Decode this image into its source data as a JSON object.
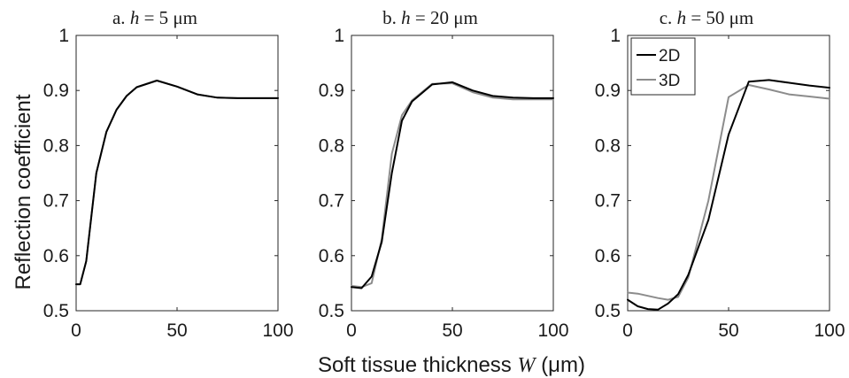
{
  "figure": {
    "ylabel": "Reflection coefficient",
    "xlabel_prefix": "Soft tissue thickness ",
    "xlabel_var": "W",
    "xlabel_unit": " (μm)"
  },
  "colors": {
    "2D": "#000000",
    "3D": "#8c8c8c"
  },
  "chart_data": [
    {
      "type": "line",
      "title": "a.  h = 5 μm",
      "title_parts": {
        "prefix": "a.  ",
        "var": "h",
        "rest": " = 5 μm"
      },
      "xlim": [
        0,
        100
      ],
      "ylim": [
        0.5,
        1
      ],
      "xticks": [
        0,
        50,
        100
      ],
      "yticks": [
        0.5,
        0.6,
        0.7,
        0.8,
        0.9,
        1
      ],
      "ytick_labels": [
        "0.5",
        "0.6",
        "0.7",
        "0.8",
        "0.9",
        "1"
      ],
      "legend": null,
      "series": [
        {
          "name": "2D",
          "x": [
            0,
            2,
            5,
            10,
            15,
            20,
            25,
            30,
            40,
            50,
            60,
            70,
            80,
            90,
            100
          ],
          "y": [
            0.548,
            0.548,
            0.59,
            0.75,
            0.825,
            0.865,
            0.89,
            0.906,
            0.918,
            0.907,
            0.893,
            0.887,
            0.886,
            0.886,
            0.886
          ]
        },
        {
          "name": "3D",
          "x": [
            0,
            2,
            5,
            10,
            15,
            20,
            25,
            30,
            40,
            50,
            60,
            70,
            80,
            90,
            100
          ],
          "y": [
            0.548,
            0.548,
            0.59,
            0.75,
            0.825,
            0.865,
            0.89,
            0.906,
            0.918,
            0.907,
            0.893,
            0.887,
            0.886,
            0.886,
            0.886
          ]
        }
      ]
    },
    {
      "type": "line",
      "title": "b.  h = 20 μm",
      "title_parts": {
        "prefix": "b.  ",
        "var": "h",
        "rest": " = 20 μm"
      },
      "xlim": [
        0,
        100
      ],
      "ylim": [
        0.5,
        1
      ],
      "xticks": [
        0,
        50,
        100
      ],
      "yticks": [
        0.5,
        0.6,
        0.7,
        0.8,
        0.9,
        1
      ],
      "ytick_labels": [
        "0.5",
        "0.6",
        "0.7",
        "0.8",
        "0.9",
        "1"
      ],
      "legend": null,
      "series": [
        {
          "name": "2D",
          "x": [
            0,
            5,
            10,
            15,
            20,
            25,
            30,
            40,
            50,
            60,
            70,
            80,
            90,
            100
          ],
          "y": [
            0.543,
            0.541,
            0.562,
            0.625,
            0.75,
            0.845,
            0.88,
            0.911,
            0.915,
            0.9,
            0.89,
            0.887,
            0.886,
            0.886
          ]
        },
        {
          "name": "3D",
          "x": [
            0,
            5,
            10,
            15,
            20,
            25,
            30,
            40,
            50,
            60,
            70,
            80,
            90,
            100
          ],
          "y": [
            0.545,
            0.543,
            0.55,
            0.63,
            0.785,
            0.855,
            0.882,
            0.912,
            0.913,
            0.897,
            0.887,
            0.884,
            0.884,
            0.884
          ]
        }
      ]
    },
    {
      "type": "line",
      "title": "c.  h = 50 μm",
      "title_parts": {
        "prefix": "c.  ",
        "var": "h",
        "rest": " = 50 μm"
      },
      "xlim": [
        0,
        100
      ],
      "ylim": [
        0.5,
        1
      ],
      "xticks": [
        0,
        50,
        100
      ],
      "yticks": [
        0.5,
        0.6,
        0.7,
        0.8,
        0.9,
        1
      ],
      "ytick_labels": [
        "0.5",
        "0.6",
        "0.7",
        "0.8",
        "0.9",
        "1"
      ],
      "legend": {
        "entries": [
          "2D",
          "3D"
        ],
        "position": "top-left"
      },
      "series": [
        {
          "name": "2D",
          "x": [
            0,
            5,
            10,
            15,
            20,
            25,
            30,
            40,
            50,
            60,
            70,
            80,
            90,
            100
          ],
          "y": [
            0.52,
            0.508,
            0.503,
            0.502,
            0.513,
            0.53,
            0.565,
            0.665,
            0.82,
            0.916,
            0.919,
            0.914,
            0.909,
            0.905
          ]
        },
        {
          "name": "3D",
          "x": [
            0,
            5,
            10,
            15,
            20,
            25,
            30,
            40,
            50,
            60,
            70,
            80,
            90,
            100
          ],
          "y": [
            0.533,
            0.531,
            0.527,
            0.523,
            0.52,
            0.525,
            0.56,
            0.7,
            0.888,
            0.91,
            0.902,
            0.893,
            0.889,
            0.885
          ]
        }
      ]
    }
  ]
}
